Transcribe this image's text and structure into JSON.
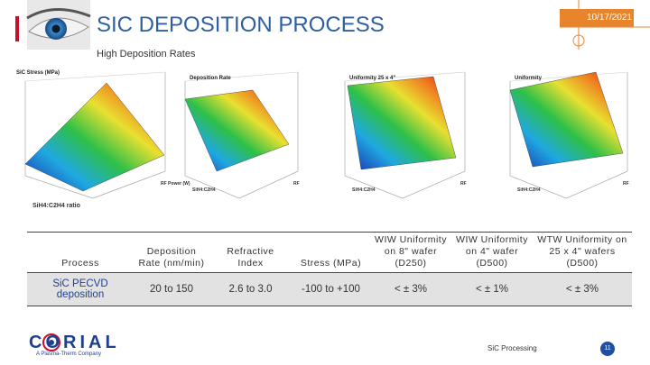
{
  "header": {
    "title": "SIC DEPOSITION PROCESS",
    "date": "10/17/2021"
  },
  "subtitle": "High Deposition Rates",
  "plots": [
    {
      "title": "SiC Stress (MPa)",
      "x_label": "SiH4:C2H4 ratio",
      "y_label": "RF Power (W)"
    },
    {
      "title": "Deposition Rate",
      "x_label": "SiH4:C2H4",
      "y_label": "RF"
    },
    {
      "title": "Uniformity 25 x 4\"",
      "x_label": "SiH4:C2H4",
      "y_label": "RF"
    },
    {
      "title": "Uniformity",
      "x_label": "SiH4:C2H4",
      "y_label": "RF"
    }
  ],
  "table": {
    "columns": [
      "Process",
      "Deposition Rate (nm/min)",
      "Refractive Index",
      "Stress (MPa)",
      "WIW Uniformity on 8\" wafer (D250)",
      "WIW Uniformity on 4\" wafer (D500)",
      "WTW Uniformity on 25 x 4\" wafers (D500)"
    ],
    "rows": [
      [
        "SiC PECVD deposition",
        "20 to 150",
        "2.6 to 3.0",
        "-100 to +100",
        "< ± 3%",
        "< ± 1%",
        "< ± 3%"
      ]
    ]
  },
  "footer": {
    "logo": "CORIAL",
    "tagline": "A Plasma-Therm Company",
    "section": "SiC Processing",
    "page": "11"
  }
}
